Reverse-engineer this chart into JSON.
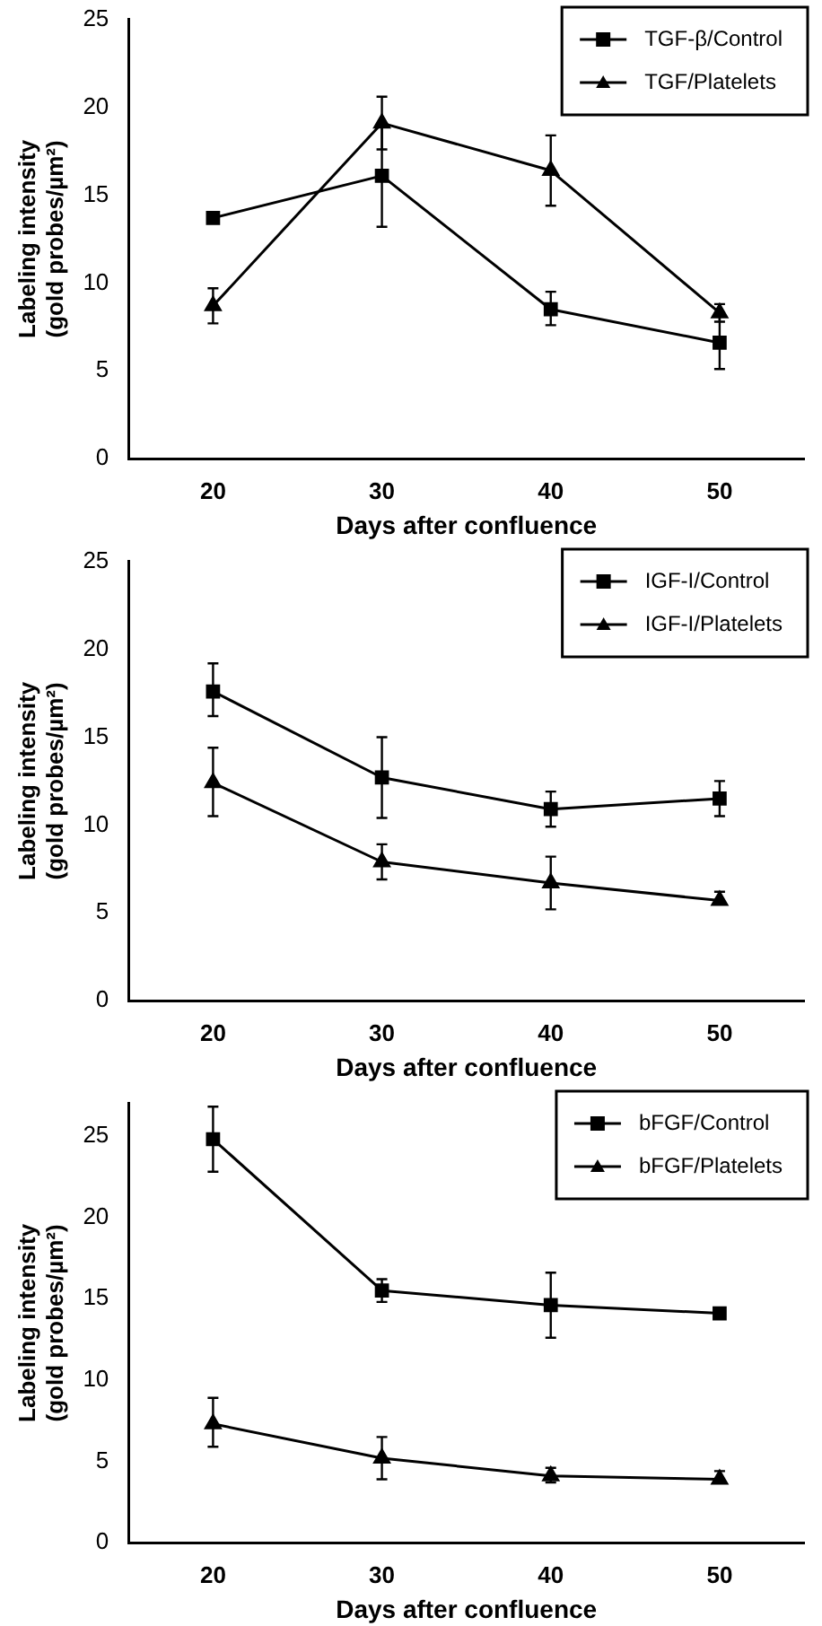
{
  "chart_data": [
    {
      "type": "line",
      "xlabel": "Days after confluence",
      "ylabel": "Labeling intensity\n(gold probes/µm²)",
      "x": [
        20,
        30,
        40,
        50
      ],
      "xlim": [
        15,
        55
      ],
      "xticks": [
        20,
        30,
        40,
        50
      ],
      "ylim": [
        0,
        25
      ],
      "yticks": [
        0,
        5,
        10,
        15,
        20,
        25
      ],
      "legend": "top right",
      "grid": false,
      "series": [
        {
          "name": "TGF-β/Control",
          "color": "#000000",
          "marker": "square",
          "values": [
            13.7,
            16.1,
            8.5,
            6.6
          ],
          "errors": [
            null,
            2.9,
            [
              7.6,
              9.5
            ],
            1.5
          ]
        },
        {
          "name": "TGF/Platelets",
          "color": "#000000",
          "marker": "triangle",
          "values": [
            8.7,
            19.1,
            16.4,
            8.3
          ],
          "errors": [
            1.0,
            1.5,
            2.0,
            0.5
          ]
        }
      ]
    },
    {
      "type": "line",
      "xlabel": "Days after confluence",
      "ylabel": "Labeling intensity\n(gold probes/µm²)",
      "x": [
        20,
        30,
        40,
        50
      ],
      "xlim": [
        15,
        55
      ],
      "xticks": [
        20,
        30,
        40,
        50
      ],
      "ylim": [
        0,
        25
      ],
      "yticks": [
        0,
        5,
        10,
        15,
        20,
        25
      ],
      "legend": "top right",
      "grid": false,
      "series": [
        {
          "name": "IGF-I/Control",
          "color": "#000000",
          "marker": "square",
          "values": [
            17.6,
            12.7,
            10.9,
            11.5
          ],
          "errors": [
            [
              16.2,
              19.2
            ],
            2.3,
            1.0,
            1.0
          ]
        },
        {
          "name": "IGF-I/Platelets",
          "color": "#000000",
          "marker": "triangle",
          "values": [
            12.4,
            7.9,
            6.7,
            5.7
          ],
          "errors": [
            [
              10.5,
              14.4
            ],
            1.0,
            1.5,
            [
              5.5,
              6.2
            ]
          ]
        }
      ]
    },
    {
      "type": "line",
      "xlabel": "Days after confluence",
      "ylabel": "Labeling intensity\n(gold probes/µm²)",
      "x": [
        20,
        30,
        40,
        50
      ],
      "xlim": [
        15,
        55
      ],
      "xticks": [
        20,
        30,
        40,
        50
      ],
      "ylim": [
        0,
        27
      ],
      "yticks": [
        0,
        5,
        10,
        15,
        20,
        25
      ],
      "legend": "top right",
      "grid": false,
      "series": [
        {
          "name": "bFGF/Control",
          "color": "#000000",
          "marker": "square",
          "values": [
            24.8,
            15.5,
            14.6,
            14.1
          ],
          "errors": [
            2.0,
            0.7,
            2.0,
            null
          ]
        },
        {
          "name": "bFGF/Platelets",
          "color": "#000000",
          "marker": "triangle",
          "values": [
            7.3,
            5.2,
            4.1,
            3.9
          ],
          "errors": [
            [
              5.9,
              8.9
            ],
            [
              3.9,
              6.5
            ],
            [
              3.7,
              4.6
            ],
            [
              3.7,
              4.4
            ]
          ]
        }
      ]
    }
  ]
}
